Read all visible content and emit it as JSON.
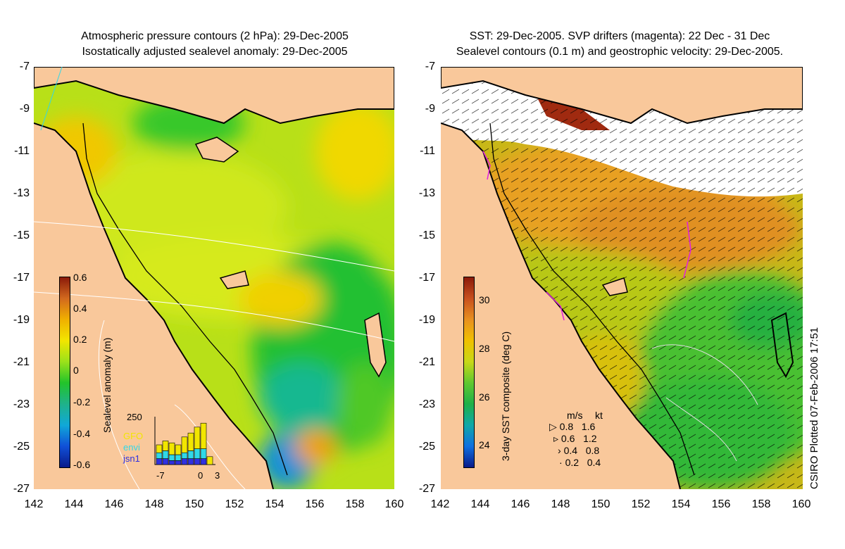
{
  "left_panel": {
    "title_line1": "Atmospheric pressure contours (2 hPa): 29-Dec-2005",
    "title_line2": "Isostatically adjusted sealevel anomaly: 29-Dec-2005",
    "colorbar": {
      "label": "Sealevel anomaly (m)",
      "ticks": [
        "0.6",
        "0.4",
        "0.2",
        "0",
        "-0.2",
        "-0.4",
        "-0.6"
      ],
      "colors": [
        "#8b1a0a",
        "#d2691e",
        "#f0b000",
        "#f2e600",
        "#9be21a",
        "#22c42a",
        "#1fb28a",
        "#10a8d8",
        "#1050d8",
        "#0a1a8a"
      ]
    },
    "satellite_inset": {
      "ymax_label": "250",
      "legend": [
        {
          "name": "GFO",
          "color": "#f2e600"
        },
        {
          "name": "envi",
          "color": "#30d8e8"
        },
        {
          "name": "jsn1",
          "color": "#3030e0"
        }
      ],
      "x_ticks": [
        "-7",
        "0",
        "3"
      ],
      "bars": [
        {
          "day": -7,
          "GFO": 40,
          "envi": 30,
          "jsn1": 30
        },
        {
          "day": -6,
          "GFO": 50,
          "envi": 40,
          "jsn1": 30
        },
        {
          "day": -5,
          "GFO": 60,
          "envi": 30,
          "jsn1": 20
        },
        {
          "day": -4,
          "GFO": 50,
          "envi": 30,
          "jsn1": 20
        },
        {
          "day": -3,
          "GFO": 80,
          "envi": 30,
          "jsn1": 30
        },
        {
          "day": -2,
          "GFO": 90,
          "envi": 40,
          "jsn1": 30
        },
        {
          "day": -1,
          "GFO": 110,
          "envi": 50,
          "jsn1": 30
        },
        {
          "day": 0,
          "GFO": 130,
          "envi": 50,
          "jsn1": 30
        },
        {
          "day": 1,
          "GFO": 40,
          "envi": 0,
          "jsn1": 0
        }
      ]
    }
  },
  "right_panel": {
    "title_line1": "SST: 29-Dec-2005. SVP drifters (magenta): 22 Dec - 31 Dec",
    "title_line2": "Sealevel contours (0.1 m) and geostrophic velocity: 29-Dec-2005.",
    "colorbar": {
      "label": "3-day SST composite (deg C)",
      "ticks": [
        "30",
        "28",
        "26",
        "24"
      ],
      "colors": [
        "#8b1a0a",
        "#c8501e",
        "#e89020",
        "#f0c000",
        "#c8d818",
        "#60c830",
        "#1fb048",
        "#10a8a8",
        "#1070e0",
        "#0a1a8a"
      ]
    },
    "velocity_key": {
      "header_ms": "m/s",
      "header_kt": "kt",
      "rows": [
        {
          "ms": "0.8",
          "kt": "1.6"
        },
        {
          "ms": "0.6",
          "kt": "1.2"
        },
        {
          "ms": "0.4",
          "kt": "0.8"
        },
        {
          "ms": "0.2",
          "kt": "0.4"
        }
      ]
    },
    "credit": "CSIRO Plotted 07-Feb-2006 17:51"
  },
  "axes": {
    "lat_ticks": [
      "-7",
      "-9",
      "-11",
      "-13",
      "-15",
      "-17",
      "-19",
      "-21",
      "-23",
      "-25",
      "-27"
    ],
    "lon_ticks": [
      "142",
      "144",
      "146",
      "148",
      "150",
      "152",
      "154",
      "156",
      "158",
      "160"
    ]
  },
  "colors": {
    "land": "#f9c89b",
    "coast": "#000000",
    "pressure_contour": "#ffffff",
    "drifter": "#e020e0"
  }
}
